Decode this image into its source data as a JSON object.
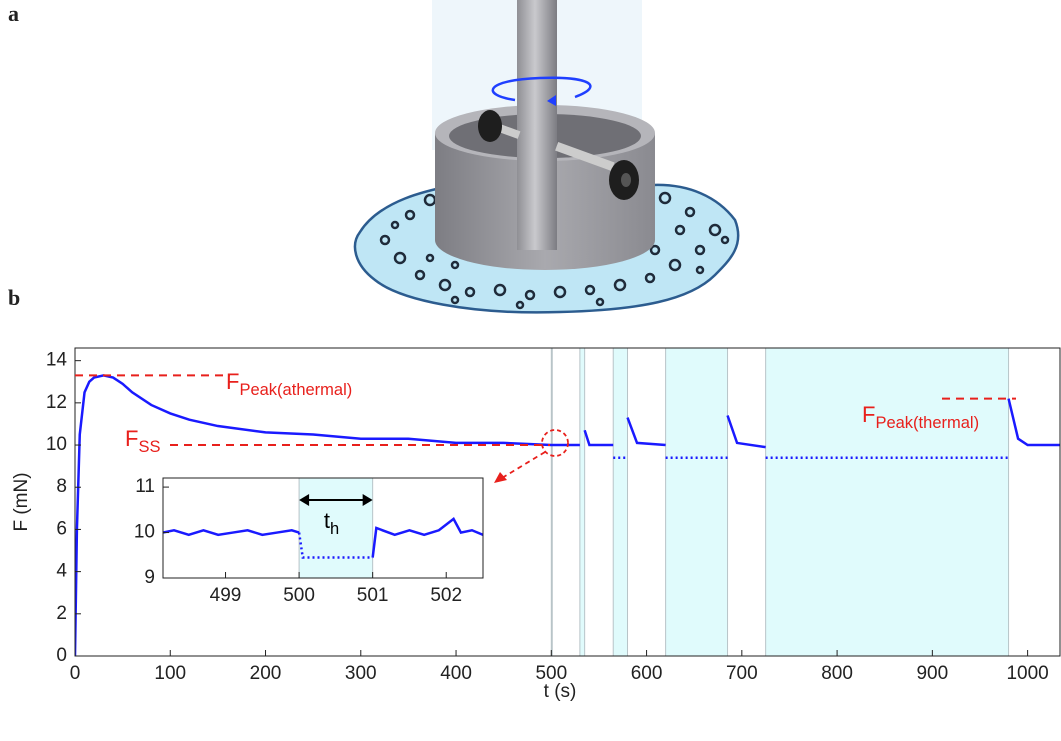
{
  "panel_labels": [
    "a",
    "b"
  ],
  "chart_data": [
    {
      "type": "line",
      "xlabel": "t (s)",
      "ylabel": "F (mN)",
      "xlim": [
        0,
        1034
      ],
      "ylim": [
        0,
        14.6
      ],
      "xticks": [
        0,
        100,
        200,
        300,
        400,
        500,
        600,
        700,
        800,
        900,
        1000
      ],
      "yticks": [
        0,
        2,
        4,
        6,
        8,
        10,
        12,
        14
      ],
      "shaded": [
        [
          500,
          501
        ],
        [
          530,
          535
        ],
        [
          565,
          580
        ],
        [
          620,
          685
        ],
        [
          725,
          980
        ]
      ],
      "shade_color": "#e0fbfc",
      "series": [
        {
          "color": "#1a1aff",
          "style": "solid",
          "x": [
            0,
            2,
            5,
            10,
            15,
            20,
            30,
            40,
            50,
            60,
            80,
            100,
            120,
            150,
            200,
            250,
            300,
            350,
            400,
            450,
            500,
            530,
            532,
            535,
            540,
            565,
            572,
            580,
            590,
            620,
            650,
            685,
            695,
            725,
            850,
            980,
            990,
            1000,
            1034
          ],
          "values": [
            0,
            6,
            10.5,
            12.5,
            13.0,
            13.2,
            13.3,
            13.2,
            12.9,
            12.5,
            11.9,
            11.5,
            11.2,
            10.9,
            10.6,
            10.5,
            10.3,
            10.3,
            10.1,
            10.1,
            10.0,
            10.0,
            null,
            10.7,
            10.0,
            10.0,
            null,
            11.3,
            10.1,
            10.0,
            null,
            11.4,
            10.1,
            9.9,
            null,
            12.2,
            10.3,
            10.0,
            10.0
          ]
        },
        {
          "color": "#1a1aff",
          "style": "dotted",
          "x": [
            565,
            580,
            600,
            620,
            685,
            700,
            725,
            980
          ],
          "values": [
            9.4,
            9.4,
            null,
            9.4,
            9.4,
            null,
            9.4,
            9.4
          ]
        }
      ],
      "annotations": [
        {
          "text": "F",
          "sub": "Peak(athermal)",
          "y": 13.3
        },
        {
          "text": "F",
          "sub": "SS",
          "y": 10.0
        },
        {
          "text": "F",
          "sub": "Peak(thermal)",
          "y": 12.2
        }
      ],
      "annotation_color": "#e8201c"
    },
    {
      "type": "line",
      "xlim": [
        498.15,
        502.5
      ],
      "ylim": [
        9,
        11.2
      ],
      "xticks": [
        499,
        500,
        501,
        502
      ],
      "yticks": [
        9,
        10,
        11
      ],
      "shaded": [
        [
          500,
          501
        ]
      ],
      "shade_color": "#e0fbfc",
      "series": [
        {
          "color": "#1a1aff",
          "style": "solid",
          "x": [
            498.15,
            498.3,
            498.5,
            498.7,
            498.9,
            499.1,
            499.3,
            499.5,
            499.7,
            499.9,
            500.0,
            500.5,
            501.0,
            501.05,
            501.3,
            501.5,
            501.7,
            501.9,
            502.1,
            502.2,
            502.35,
            502.5
          ],
          "values": [
            10.0,
            10.05,
            9.95,
            10.05,
            9.95,
            10.0,
            10.05,
            9.95,
            10.0,
            10.05,
            10.0,
            null,
            9.45,
            10.1,
            9.95,
            10.05,
            9.95,
            10.05,
            10.3,
            10.0,
            10.05,
            9.95
          ]
        },
        {
          "color": "#1a1aff",
          "style": "dotted",
          "x": [
            500.0,
            500.05,
            501.0
          ],
          "values": [
            10.0,
            9.45,
            9.45
          ]
        }
      ],
      "annotations": [
        {
          "text": "t",
          "sub": "h"
        }
      ]
    }
  ]
}
